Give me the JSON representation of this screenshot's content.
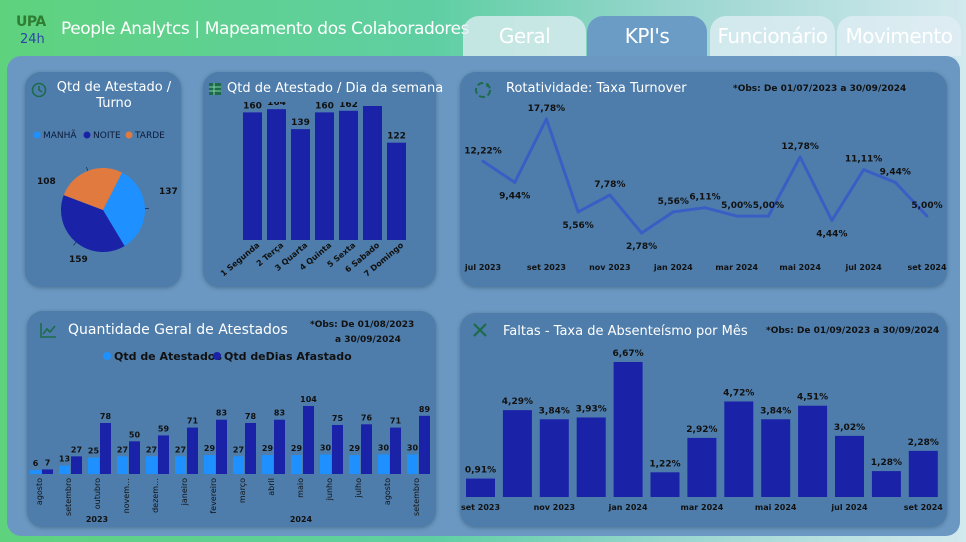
{
  "header": {
    "logo_text": "UPA",
    "logo_sub": "24h",
    "title": "People Analytcs | Mapeamento dos Colaboradores",
    "tabs": [
      {
        "label": "Geral",
        "active": false
      },
      {
        "label": "KPI's",
        "active": true
      },
      {
        "label": "Funcionário",
        "active": false
      },
      {
        "label": "Movimento",
        "active": false
      }
    ]
  },
  "panels": {
    "turno": {
      "title_line1": "Qtd de Atestado /",
      "title_line2": "Turno",
      "icon": "clock-icon",
      "legend": [
        {
          "label": "MANHÃ",
          "color": "#1e90ff"
        },
        {
          "label": "NOITE",
          "color": "#1a22a8"
        },
        {
          "label": "TARDE",
          "color": "#e07a3f"
        }
      ]
    },
    "dia_semana": {
      "title": "Qtd de Atestado / Dia da semana",
      "icon": "table-icon"
    },
    "turnover": {
      "title": "Rotatividade: Taxa Turnover",
      "obs": "*Obs: De 01/07/2023 a 30/09/2024",
      "icon": "refresh-icon"
    },
    "atestados": {
      "title": "Quantidade Geral de Atestados",
      "obs_line1": "*Obs: De 01/08/2023",
      "obs_line2": "a 30/09/2024",
      "icon": "trend-icon",
      "legend": [
        {
          "label": "Qtd de Atestados",
          "color": "#1e90ff"
        },
        {
          "label": "Qtd deDias Afastado",
          "color": "#1a22a8"
        }
      ],
      "year_labels": [
        "2023",
        "2024"
      ]
    },
    "absenteismo": {
      "title": "Faltas - Taxa de Absenteísmo por Mês",
      "obs": "*Obs: De 01/09/2023 a 30/09/2024",
      "icon": "x-icon"
    }
  },
  "chart_data": [
    {
      "type": "pie",
      "title": "Qtd de Atestado / Turno",
      "categories": [
        "MANHÃ",
        "NOITE",
        "TARDE"
      ],
      "values": [
        137,
        159,
        108
      ],
      "colors": [
        "#1e90ff",
        "#1a22a8",
        "#e07a3f"
      ]
    },
    {
      "type": "bar",
      "title": "Qtd de Atestado / Dia da semana",
      "categories": [
        "1 Segunda",
        "2 Terça",
        "3 Quarta",
        "4 Quinta",
        "5 Sexta",
        "6 Sabado",
        "7 Domingo"
      ],
      "values": [
        160,
        164,
        139,
        160,
        162,
        168,
        122
      ],
      "ylim": [
        0,
        168
      ],
      "color": "#1a22a8"
    },
    {
      "type": "line",
      "title": "Rotatividade: Taxa Turnover",
      "x": [
        "jul 2023",
        "ago 2023",
        "set 2023",
        "out 2023",
        "nov 2023",
        "dez 2023",
        "jan 2024",
        "fev 2024",
        "mar 2024",
        "abr 2024",
        "mai 2024",
        "jun 2024",
        "jul 2024",
        "ago 2024",
        "set 2024"
      ],
      "values": [
        12.22,
        9.44,
        17.78,
        5.56,
        7.78,
        2.78,
        5.56,
        6.11,
        5.0,
        5.0,
        12.78,
        4.44,
        11.11,
        9.44,
        5.0
      ],
      "labels": [
        "12,22%",
        "9,44%",
        "17,78%",
        "5,56%",
        "7,78%",
        "2,78%",
        "5,56%",
        "6,11%",
        "5,00%",
        "5,00%",
        "12,78%",
        "4,44%",
        "11,11%",
        "9,44%",
        "5,00%"
      ],
      "tick_labels": [
        "jul 2023",
        "set 2023",
        "nov 2023",
        "jan 2024",
        "mar 2024",
        "mai 2024",
        "jul 2024",
        "set 2024"
      ],
      "color": "#3a5fc4"
    },
    {
      "type": "bar",
      "title": "Quantidade Geral de Atestados",
      "categories": [
        "agosto",
        "setembro",
        "outubro",
        "novem…",
        "dezem…",
        "janeiro",
        "fevereiro",
        "março",
        "abril",
        "maio",
        "junho",
        "julho",
        "agosto",
        "setembro"
      ],
      "series": [
        {
          "name": "Qtd de Atestados",
          "values": [
            6,
            13,
            25,
            27,
            27,
            27,
            29,
            27,
            29,
            29,
            30,
            29,
            30,
            30
          ],
          "color": "#1e90ff"
        },
        {
          "name": "Qtd deDias Afastado",
          "values": [
            7,
            27,
            78,
            50,
            59,
            71,
            83,
            78,
            83,
            104,
            75,
            76,
            71,
            89
          ],
          "color": "#1a22a8"
        }
      ],
      "ylim": [
        0,
        104
      ]
    },
    {
      "type": "bar",
      "title": "Faltas - Taxa de Absenteísmo por Mês",
      "categories": [
        "set 2023",
        "out 2023",
        "nov 2023",
        "dez 2023",
        "jan 2024",
        "fev 2024",
        "mar 2024",
        "abr 2024",
        "mai 2024",
        "jun 2024",
        "jul 2024",
        "ago 2024",
        "set 2024"
      ],
      "values": [
        0.91,
        4.29,
        3.84,
        3.93,
        6.67,
        1.22,
        2.92,
        4.72,
        3.84,
        4.51,
        3.02,
        1.28,
        2.28
      ],
      "labels": [
        "0,91%",
        "4,29%",
        "3,84%",
        "3,93%",
        "6,67%",
        "1,22%",
        "2,92%",
        "4,72%",
        "3,84%",
        "4,51%",
        "3,02%",
        "1,28%",
        "2,28%"
      ],
      "tick_labels": [
        "set 2023",
        "nov 2023",
        "jan 2024",
        "mar 2024",
        "mai 2024",
        "jul 2024",
        "set 2024"
      ],
      "ylim": [
        0,
        6.67
      ],
      "color": "#1a22a8"
    }
  ]
}
